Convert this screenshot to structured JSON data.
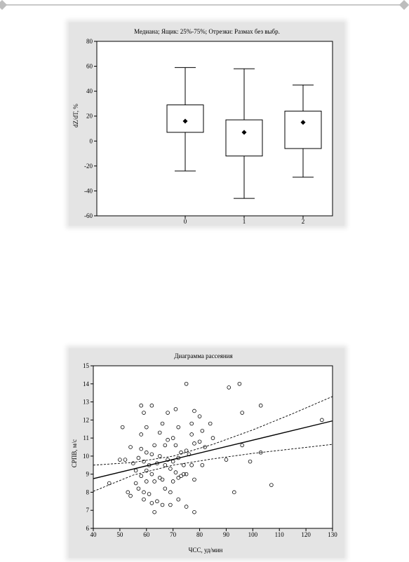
{
  "chart_data": [
    {
      "type": "box",
      "title": "Медиана; Ящик: 25%-75%; Отрезки: Размах без выбр.",
      "xlabel": "",
      "ylabel": "dZ/dT, %",
      "categories": [
        "0",
        "1",
        "2"
      ],
      "ylim": [
        -60,
        80
      ],
      "yticks": [
        "80",
        "60",
        "40",
        "20",
        "0",
        "-20",
        "-40",
        "-60"
      ],
      "boxes": [
        {
          "category": "0",
          "min": -24,
          "q1": 7,
          "median": 16,
          "q3": 29,
          "max": 59
        },
        {
          "category": "1",
          "min": -46,
          "q1": -12,
          "median": 7,
          "q3": 17,
          "max": 58
        },
        {
          "category": "2",
          "min": -29,
          "q1": -6,
          "median": 15,
          "q3": 24,
          "max": 45
        }
      ],
      "grid": false
    },
    {
      "type": "scatter",
      "title": "Диаграмма рассеяния",
      "xlabel": "ЧСС, уд/мин",
      "ylabel": "СРПВ, м/с",
      "xlim": [
        40,
        130
      ],
      "ylim": [
        6,
        15
      ],
      "xticks": [
        "40",
        "50",
        "60",
        "70",
        "80",
        "90",
        "100",
        "110",
        "120",
        "130"
      ],
      "yticks": [
        "15",
        "14",
        "13",
        "12",
        "11",
        "10",
        "9",
        "8",
        "7",
        "6"
      ],
      "regression_line": {
        "x": [
          40,
          130
        ],
        "y": [
          8.75,
          11.95
        ]
      },
      "confidence_band": {
        "upper": {
          "x": [
            40,
            55,
            70,
            85,
            100,
            115,
            130
          ],
          "y": [
            9.5,
            9.65,
            10.0,
            10.65,
            11.45,
            12.35,
            13.3
          ]
        },
        "lower": {
          "x": [
            40,
            55,
            70,
            85,
            100,
            115,
            130
          ],
          "y": [
            8.05,
            8.95,
            9.5,
            9.85,
            10.15,
            10.4,
            10.65
          ]
        }
      },
      "points": [
        {
          "x": 46,
          "y": 8.5
        },
        {
          "x": 50,
          "y": 9.8
        },
        {
          "x": 51,
          "y": 11.6
        },
        {
          "x": 52,
          "y": 9.8
        },
        {
          "x": 53,
          "y": 8.0
        },
        {
          "x": 54,
          "y": 10.5
        },
        {
          "x": 54,
          "y": 7.8
        },
        {
          "x": 55,
          "y": 9.6
        },
        {
          "x": 56,
          "y": 9.2
        },
        {
          "x": 56,
          "y": 8.5
        },
        {
          "x": 57,
          "y": 8.2
        },
        {
          "x": 57,
          "y": 9.9
        },
        {
          "x": 58,
          "y": 11.2
        },
        {
          "x": 58,
          "y": 12.8
        },
        {
          "x": 58,
          "y": 10.4
        },
        {
          "x": 58,
          "y": 8.9
        },
        {
          "x": 59,
          "y": 12.4
        },
        {
          "x": 59,
          "y": 9.7
        },
        {
          "x": 59,
          "y": 8.0
        },
        {
          "x": 59,
          "y": 7.6
        },
        {
          "x": 60,
          "y": 11.6
        },
        {
          "x": 60,
          "y": 10.2
        },
        {
          "x": 60,
          "y": 9.2
        },
        {
          "x": 60,
          "y": 8.6
        },
        {
          "x": 61,
          "y": 9.5
        },
        {
          "x": 61,
          "y": 7.9
        },
        {
          "x": 62,
          "y": 12.8
        },
        {
          "x": 62,
          "y": 10.1
        },
        {
          "x": 62,
          "y": 9.0
        },
        {
          "x": 62,
          "y": 7.4
        },
        {
          "x": 63,
          "y": 10.6
        },
        {
          "x": 63,
          "y": 8.6
        },
        {
          "x": 63,
          "y": 6.9
        },
        {
          "x": 64,
          "y": 9.6
        },
        {
          "x": 64,
          "y": 7.5
        },
        {
          "x": 65,
          "y": 11.3
        },
        {
          "x": 65,
          "y": 10.0
        },
        {
          "x": 65,
          "y": 8.8
        },
        {
          "x": 66,
          "y": 11.8
        },
        {
          "x": 66,
          "y": 8.7
        },
        {
          "x": 66,
          "y": 7.3
        },
        {
          "x": 67,
          "y": 10.6
        },
        {
          "x": 67,
          "y": 9.5
        },
        {
          "x": 67,
          "y": 8.2
        },
        {
          "x": 68,
          "y": 12.4
        },
        {
          "x": 68,
          "y": 10.9
        },
        {
          "x": 68,
          "y": 9.8
        },
        {
          "x": 69,
          "y": 9.3
        },
        {
          "x": 69,
          "y": 8.0
        },
        {
          "x": 69,
          "y": 7.3
        },
        {
          "x": 70,
          "y": 11.0
        },
        {
          "x": 70,
          "y": 9.7
        },
        {
          "x": 70,
          "y": 8.6
        },
        {
          "x": 71,
          "y": 12.6
        },
        {
          "x": 71,
          "y": 10.6
        },
        {
          "x": 71,
          "y": 9.1
        },
        {
          "x": 72,
          "y": 11.6
        },
        {
          "x": 72,
          "y": 9.9
        },
        {
          "x": 72,
          "y": 8.8
        },
        {
          "x": 72,
          "y": 7.6
        },
        {
          "x": 73,
          "y": 10.2
        },
        {
          "x": 73,
          "y": 8.9
        },
        {
          "x": 74,
          "y": 9.5
        },
        {
          "x": 74,
          "y": 9.0
        },
        {
          "x": 75,
          "y": 14.0
        },
        {
          "x": 75,
          "y": 10.3
        },
        {
          "x": 75,
          "y": 9.0
        },
        {
          "x": 75,
          "y": 7.2
        },
        {
          "x": 76,
          "y": 10.1
        },
        {
          "x": 77,
          "y": 11.8
        },
        {
          "x": 77,
          "y": 11.2
        },
        {
          "x": 77,
          "y": 9.5
        },
        {
          "x": 78,
          "y": 12.5
        },
        {
          "x": 78,
          "y": 10.7
        },
        {
          "x": 78,
          "y": 8.7
        },
        {
          "x": 78,
          "y": 6.9
        },
        {
          "x": 80,
          "y": 12.2
        },
        {
          "x": 80,
          "y": 10.8
        },
        {
          "x": 81,
          "y": 11.4
        },
        {
          "x": 81,
          "y": 9.5
        },
        {
          "x": 82,
          "y": 10.5
        },
        {
          "x": 84,
          "y": 11.8
        },
        {
          "x": 85,
          "y": 11.0
        },
        {
          "x": 90,
          "y": 9.8
        },
        {
          "x": 91,
          "y": 13.8
        },
        {
          "x": 93,
          "y": 8.0
        },
        {
          "x": 95,
          "y": 14.0
        },
        {
          "x": 96,
          "y": 12.4
        },
        {
          "x": 96,
          "y": 10.6
        },
        {
          "x": 99,
          "y": 9.7
        },
        {
          "x": 103,
          "y": 12.8
        },
        {
          "x": 103,
          "y": 10.2
        },
        {
          "x": 107,
          "y": 8.4
        },
        {
          "x": 126,
          "y": 12.0
        }
      ],
      "grid": false
    }
  ]
}
